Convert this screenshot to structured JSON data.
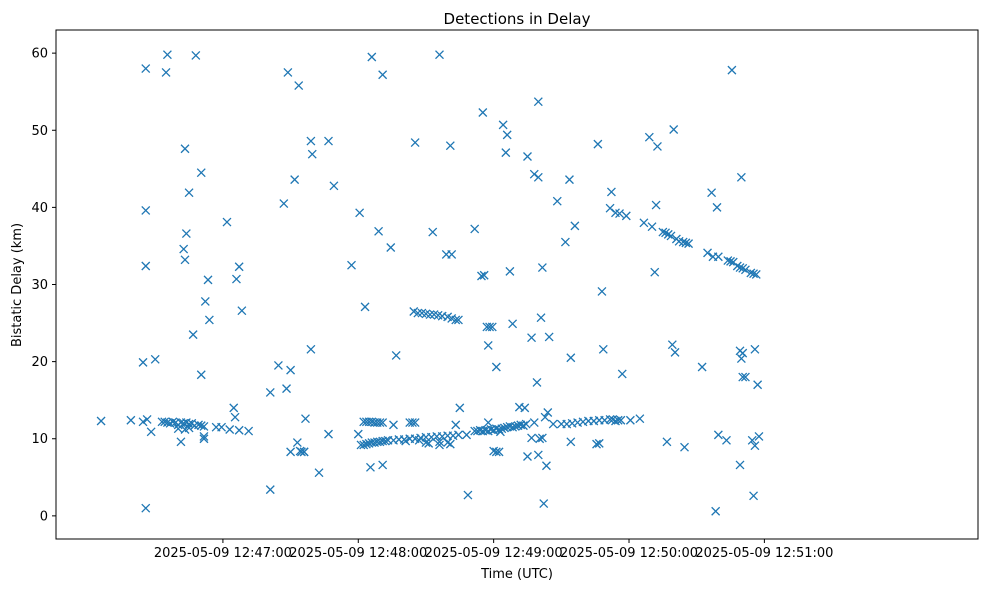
{
  "chart_data": {
    "type": "scatter",
    "title": "Detections in Delay",
    "xlabel": "Time (UTC)",
    "ylabel": "Bistatic Delay (km)",
    "marker": "x",
    "color": "#1f77b4",
    "xlim_minutes": [
      -1.233,
      5.578
    ],
    "ylim": [
      -3.0,
      63.0
    ],
    "x_ticks": [
      {
        "label": "2025-05-09 12:47:00",
        "value": 0
      },
      {
        "label": "2025-05-09 12:48:00",
        "value": 1
      },
      {
        "label": "2025-05-09 12:49:00",
        "value": 2
      },
      {
        "label": "2025-05-09 12:50:00",
        "value": 3
      },
      {
        "label": "2025-05-09 12:51:00",
        "value": 4
      }
    ],
    "y_ticks": [
      {
        "label": "0",
        "value": 0
      },
      {
        "label": "10",
        "value": 10
      },
      {
        "label": "20",
        "value": 20
      },
      {
        "label": "30",
        "value": 30
      },
      {
        "label": "40",
        "value": 40
      },
      {
        "label": "50",
        "value": 50
      },
      {
        "label": "60",
        "value": 60
      }
    ],
    "x_unit": "minutes after 2025-05-09 12:47:00",
    "points": [
      [
        -0.9,
        12.3
      ],
      [
        -0.68,
        12.4
      ],
      [
        -0.59,
        12.2
      ],
      [
        -0.56,
        12.5
      ],
      [
        -0.53,
        10.9
      ],
      [
        -0.57,
        1.0
      ],
      [
        -0.57,
        58.0
      ],
      [
        -0.57,
        39.6
      ],
      [
        -0.57,
        32.4
      ],
      [
        -0.59,
        19.9
      ],
      [
        -0.5,
        20.3
      ],
      [
        -0.42,
        57.5
      ],
      [
        -0.41,
        59.8
      ],
      [
        -0.2,
        59.7
      ],
      [
        -0.45,
        12.2
      ],
      [
        -0.43,
        12.2
      ],
      [
        -0.41,
        12.1
      ],
      [
        -0.39,
        12.0
      ],
      [
        -0.37,
        12.2
      ],
      [
        -0.35,
        12.1
      ],
      [
        -0.33,
        11.8
      ],
      [
        -0.31,
        12.1
      ],
      [
        -0.29,
        12.0
      ],
      [
        -0.27,
        12.1
      ],
      [
        -0.25,
        11.9
      ],
      [
        -0.23,
        12.0
      ],
      [
        -0.21,
        11.7
      ],
      [
        -0.18,
        11.8
      ],
      [
        -0.16,
        11.7
      ],
      [
        -0.14,
        11.6
      ],
      [
        -0.33,
        11.3
      ],
      [
        -0.31,
        9.6
      ],
      [
        -0.28,
        11.2
      ],
      [
        -0.25,
        11.4
      ],
      [
        -0.14,
        10.3
      ],
      [
        -0.14,
        10.0
      ],
      [
        -0.28,
        47.6
      ],
      [
        -0.29,
        34.6
      ],
      [
        -0.28,
        33.2
      ],
      [
        -0.27,
        36.6
      ],
      [
        -0.25,
        41.9
      ],
      [
        -0.22,
        23.5
      ],
      [
        -0.16,
        44.5
      ],
      [
        -0.16,
        18.3
      ],
      [
        -0.13,
        27.8
      ],
      [
        -0.11,
        30.6
      ],
      [
        -0.1,
        25.4
      ],
      [
        -0.05,
        11.5
      ],
      [
        -0.01,
        11.5
      ],
      [
        0.03,
        38.1
      ],
      [
        0.05,
        11.2
      ],
      [
        0.08,
        14.0
      ],
      [
        0.09,
        12.8
      ],
      [
        0.1,
        30.7
      ],
      [
        0.12,
        32.3
      ],
      [
        0.12,
        11.1
      ],
      [
        0.14,
        26.6
      ],
      [
        0.19,
        11.0
      ],
      [
        0.35,
        3.4
      ],
      [
        0.35,
        16.0
      ],
      [
        0.41,
        19.5
      ],
      [
        0.45,
        40.5
      ],
      [
        0.48,
        57.5
      ],
      [
        0.47,
        16.5
      ],
      [
        0.5,
        8.3
      ],
      [
        0.5,
        18.9
      ],
      [
        0.53,
        43.6
      ],
      [
        0.55,
        9.5
      ],
      [
        0.56,
        55.8
      ],
      [
        0.57,
        8.4
      ],
      [
        0.58,
        8.3
      ],
      [
        0.6,
        8.3
      ],
      [
        0.61,
        12.6
      ],
      [
        0.6,
        8.3
      ],
      [
        0.65,
        48.6
      ],
      [
        0.66,
        46.9
      ],
      [
        0.65,
        21.6
      ],
      [
        0.71,
        5.6
      ],
      [
        0.78,
        48.6
      ],
      [
        0.78,
        10.6
      ],
      [
        0.82,
        42.8
      ],
      [
        0.95,
        32.5
      ],
      [
        1.0,
        10.6
      ],
      [
        1.01,
        39.3
      ],
      [
        1.05,
        27.1
      ],
      [
        1.1,
        59.5
      ],
      [
        1.18,
        57.2
      ],
      [
        1.15,
        36.9
      ],
      [
        1.24,
        34.8
      ],
      [
        1.28,
        20.8
      ],
      [
        1.18,
        6.6
      ],
      [
        1.09,
        6.3
      ],
      [
        1.02,
        9.2
      ],
      [
        1.04,
        9.2
      ],
      [
        1.06,
        9.3
      ],
      [
        1.08,
        9.4
      ],
      [
        1.1,
        9.5
      ],
      [
        1.12,
        9.5
      ],
      [
        1.14,
        9.6
      ],
      [
        1.16,
        9.6
      ],
      [
        1.18,
        9.7
      ],
      [
        1.2,
        9.7
      ],
      [
        1.22,
        9.8
      ],
      [
        1.26,
        9.8
      ],
      [
        1.3,
        9.9
      ],
      [
        1.34,
        9.9
      ],
      [
        1.38,
        10.0
      ],
      [
        1.42,
        10.0
      ],
      [
        1.46,
        10.1
      ],
      [
        1.5,
        10.2
      ],
      [
        1.54,
        10.2
      ],
      [
        1.58,
        10.3
      ],
      [
        1.62,
        10.3
      ],
      [
        1.66,
        10.4
      ],
      [
        1.7,
        10.4
      ],
      [
        1.74,
        10.5
      ],
      [
        1.8,
        10.5
      ],
      [
        1.04,
        12.2
      ],
      [
        1.06,
        12.2
      ],
      [
        1.08,
        12.2
      ],
      [
        1.1,
        12.2
      ],
      [
        1.12,
        12.1
      ],
      [
        1.14,
        12.1
      ],
      [
        1.16,
        12.1
      ],
      [
        1.18,
        12.1
      ],
      [
        1.38,
        12.1
      ],
      [
        1.4,
        12.1
      ],
      [
        1.42,
        12.1
      ],
      [
        1.26,
        11.8
      ],
      [
        1.35,
        9.7
      ],
      [
        1.45,
        9.8
      ],
      [
        1.5,
        9.5
      ],
      [
        1.52,
        9.4
      ],
      [
        1.6,
        9.6
      ],
      [
        1.6,
        9.2
      ],
      [
        1.66,
        9.5
      ],
      [
        1.68,
        9.3
      ],
      [
        1.72,
        11.8
      ],
      [
        1.42,
        48.4
      ],
      [
        1.55,
        36.8
      ],
      [
        1.6,
        59.8
      ],
      [
        1.65,
        33.9
      ],
      [
        1.69,
        33.9
      ],
      [
        1.68,
        48.0
      ],
      [
        1.74,
        25.4
      ],
      [
        1.41,
        26.5
      ],
      [
        1.44,
        26.3
      ],
      [
        1.47,
        26.3
      ],
      [
        1.5,
        26.2
      ],
      [
        1.53,
        26.1
      ],
      [
        1.56,
        26.1
      ],
      [
        1.59,
        26.0
      ],
      [
        1.62,
        25.9
      ],
      [
        1.66,
        25.8
      ],
      [
        1.69,
        25.6
      ],
      [
        1.72,
        25.4
      ],
      [
        1.75,
        14.0
      ],
      [
        1.81,
        2.7
      ],
      [
        1.86,
        11.0
      ],
      [
        1.88,
        11.0
      ],
      [
        1.9,
        11.1
      ],
      [
        1.92,
        11.0
      ],
      [
        1.94,
        11.1
      ],
      [
        1.96,
        11.0
      ],
      [
        1.98,
        11.2
      ],
      [
        2.0,
        11.1
      ],
      [
        2.02,
        11.3
      ],
      [
        2.04,
        11.2
      ],
      [
        2.06,
        11.3
      ],
      [
        2.08,
        11.4
      ],
      [
        2.1,
        11.5
      ],
      [
        2.12,
        11.6
      ],
      [
        2.14,
        11.5
      ],
      [
        2.16,
        11.6
      ],
      [
        2.18,
        11.7
      ],
      [
        2.2,
        11.8
      ],
      [
        2.22,
        11.7
      ],
      [
        1.86,
        37.2
      ],
      [
        1.92,
        52.3
      ],
      [
        1.91,
        31.1
      ],
      [
        1.93,
        31.2
      ],
      [
        1.95,
        24.5
      ],
      [
        1.97,
        24.5
      ],
      [
        1.99,
        24.5
      ],
      [
        2.02,
        19.3
      ],
      [
        1.96,
        22.1
      ],
      [
        1.96,
        12.1
      ],
      [
        2.0,
        8.4
      ],
      [
        2.02,
        8.3
      ],
      [
        2.04,
        8.3
      ],
      [
        2.05,
        10.9
      ],
      [
        2.07,
        50.7
      ],
      [
        2.09,
        47.1
      ],
      [
        2.1,
        49.4
      ],
      [
        2.12,
        31.7
      ],
      [
        2.14,
        24.9
      ],
      [
        2.19,
        14.1
      ],
      [
        2.23,
        14.0
      ],
      [
        2.25,
        7.7
      ],
      [
        2.25,
        46.6
      ],
      [
        2.3,
        44.3
      ],
      [
        2.28,
        23.1
      ],
      [
        2.32,
        17.3
      ],
      [
        2.33,
        53.7
      ],
      [
        2.35,
        25.7
      ],
      [
        2.36,
        32.2
      ],
      [
        2.37,
        1.6
      ],
      [
        2.33,
        43.9
      ],
      [
        2.24,
        11.9
      ],
      [
        2.28,
        10.1
      ],
      [
        2.3,
        12.1
      ],
      [
        2.33,
        7.9
      ],
      [
        2.34,
        10.0
      ],
      [
        2.36,
        10.1
      ],
      [
        2.38,
        12.8
      ],
      [
        2.4,
        13.4
      ],
      [
        2.39,
        6.5
      ],
      [
        2.41,
        23.2
      ],
      [
        2.44,
        11.9
      ],
      [
        2.5,
        11.9
      ],
      [
        2.47,
        40.8
      ],
      [
        2.53,
        35.5
      ],
      [
        2.56,
        43.6
      ],
      [
        2.57,
        9.6
      ],
      [
        2.6,
        37.6
      ],
      [
        2.57,
        20.5
      ],
      [
        2.54,
        11.9
      ],
      [
        2.58,
        12.0
      ],
      [
        2.62,
        12.1
      ],
      [
        2.66,
        12.2
      ],
      [
        2.7,
        12.3
      ],
      [
        2.74,
        12.3
      ],
      [
        2.78,
        12.4
      ],
      [
        2.82,
        12.4
      ],
      [
        2.86,
        12.5
      ],
      [
        2.88,
        12.5
      ],
      [
        2.9,
        12.3
      ],
      [
        2.92,
        12.4
      ],
      [
        2.94,
        12.4
      ],
      [
        2.76,
        9.3
      ],
      [
        2.78,
        9.4
      ],
      [
        2.77,
        48.2
      ],
      [
        2.8,
        29.1
      ],
      [
        2.81,
        21.6
      ],
      [
        2.87,
        42.0
      ],
      [
        2.86,
        39.9
      ],
      [
        2.9,
        39.3
      ],
      [
        2.93,
        39.2
      ],
      [
        2.95,
        18.4
      ],
      [
        2.98,
        38.9
      ],
      [
        3.01,
        12.4
      ],
      [
        3.08,
        12.6
      ],
      [
        3.11,
        38.0
      ],
      [
        3.15,
        49.1
      ],
      [
        3.17,
        37.5
      ],
      [
        3.19,
        31.6
      ],
      [
        3.2,
        40.3
      ],
      [
        3.21,
        47.9
      ],
      [
        3.25,
        36.8
      ],
      [
        3.27,
        36.7
      ],
      [
        3.29,
        36.5
      ],
      [
        3.31,
        36.3
      ],
      [
        3.35,
        35.9
      ],
      [
        3.37,
        35.6
      ],
      [
        3.4,
        35.5
      ],
      [
        3.42,
        35.4
      ],
      [
        3.44,
        35.3
      ],
      [
        3.28,
        9.6
      ],
      [
        3.33,
        50.1
      ],
      [
        3.32,
        22.2
      ],
      [
        3.34,
        21.2
      ],
      [
        3.41,
        8.9
      ],
      [
        3.54,
        19.3
      ],
      [
        3.58,
        34.1
      ],
      [
        3.62,
        33.6
      ],
      [
        3.61,
        41.9
      ],
      [
        3.65,
        40.0
      ],
      [
        3.66,
        10.5
      ],
      [
        3.64,
        0.6
      ],
      [
        3.76,
        57.8
      ],
      [
        3.72,
        9.8
      ],
      [
        3.66,
        33.6
      ],
      [
        3.73,
        33.1
      ],
      [
        3.75,
        33.0
      ],
      [
        3.77,
        32.9
      ],
      [
        3.8,
        32.4
      ],
      [
        3.82,
        32.2
      ],
      [
        3.84,
        32.1
      ],
      [
        3.86,
        31.9
      ],
      [
        3.9,
        31.5
      ],
      [
        3.92,
        31.4
      ],
      [
        3.94,
        31.3
      ],
      [
        3.83,
        43.9
      ],
      [
        3.82,
        21.4
      ],
      [
        3.84,
        21.1
      ],
      [
        3.83,
        20.4
      ],
      [
        3.84,
        18.0
      ],
      [
        3.86,
        18.0
      ],
      [
        3.82,
        6.6
      ],
      [
        3.91,
        9.8
      ],
      [
        3.92,
        2.6
      ],
      [
        3.93,
        9.1
      ],
      [
        3.93,
        21.6
      ],
      [
        3.95,
        17.0
      ],
      [
        3.96,
        10.3
      ]
    ]
  }
}
